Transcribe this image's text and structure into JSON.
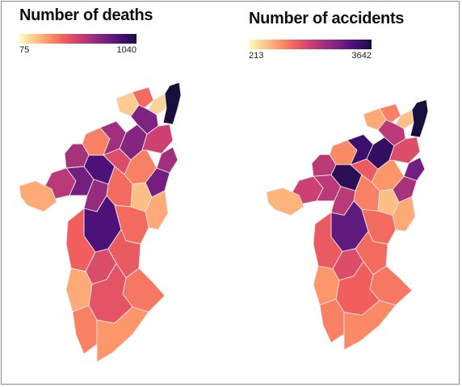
{
  "colors": {
    "scale": [
      "#fcfdbf",
      "#fec98d",
      "#fd9668",
      "#f1605d",
      "#cd4071",
      "#9e2f7f",
      "#721f81",
      "#440f76",
      "#180f3d"
    ],
    "border": "#f5e6e6"
  },
  "maps": [
    {
      "title": "Number of deaths",
      "legend": {
        "min": "75",
        "max": "1040"
      },
      "districts": [
        {
          "name": "d01",
          "value": 0.55
        },
        {
          "name": "d02",
          "value": 0.2
        },
        {
          "name": "d03",
          "value": 0.75
        },
        {
          "name": "d04",
          "value": 0.3
        },
        {
          "name": "d05",
          "value": 0.6
        },
        {
          "name": "d06",
          "value": 0.85
        },
        {
          "name": "d07",
          "value": 0.45
        },
        {
          "name": "d08",
          "value": 0.62
        },
        {
          "name": "d09",
          "value": 0.12
        },
        {
          "name": "d10",
          "value": 0.35
        },
        {
          "name": "d11",
          "value": 0.7
        },
        {
          "name": "d12",
          "value": 0.1
        },
        {
          "name": "d13",
          "value": 0.72
        },
        {
          "name": "d14",
          "value": 0.5
        },
        {
          "name": "d15",
          "value": 1.0
        },
        {
          "name": "d16",
          "value": 0.62
        },
        {
          "name": "d17",
          "value": 0.75
        },
        {
          "name": "d18",
          "value": 0.3
        },
        {
          "name": "d19",
          "value": 0.15
        },
        {
          "name": "d20",
          "value": 0.35
        },
        {
          "name": "d21",
          "value": 0.65
        },
        {
          "name": "d22",
          "value": 0.2
        },
        {
          "name": "d23",
          "value": 0.85
        },
        {
          "name": "d24",
          "value": 0.35
        },
        {
          "name": "d25",
          "value": 0.38
        },
        {
          "name": "d26",
          "value": 0.45
        },
        {
          "name": "d27",
          "value": 0.4
        },
        {
          "name": "d28",
          "value": 0.32
        },
        {
          "name": "d29",
          "value": 0.2
        },
        {
          "name": "d30",
          "value": 0.42
        },
        {
          "name": "d31",
          "value": 0.3
        },
        {
          "name": "d32",
          "value": 0.25
        }
      ]
    },
    {
      "title": "Number of accidents",
      "legend": {
        "min": "213",
        "max": "3642"
      },
      "districts": [
        {
          "name": "d01",
          "value": 0.5
        },
        {
          "name": "d02",
          "value": 0.18
        },
        {
          "name": "d03",
          "value": 0.55
        },
        {
          "name": "d04",
          "value": 0.28
        },
        {
          "name": "d05",
          "value": 0.55
        },
        {
          "name": "d06",
          "value": 0.95
        },
        {
          "name": "d07",
          "value": 0.4
        },
        {
          "name": "d08",
          "value": 0.9
        },
        {
          "name": "d09",
          "value": 0.2
        },
        {
          "name": "d10",
          "value": 0.3
        },
        {
          "name": "d11",
          "value": 0.92
        },
        {
          "name": "d12",
          "value": 0.15
        },
        {
          "name": "d13",
          "value": 0.55
        },
        {
          "name": "d14",
          "value": 0.45
        },
        {
          "name": "d15",
          "value": 1.0
        },
        {
          "name": "d16",
          "value": 0.75
        },
        {
          "name": "d17",
          "value": 0.6
        },
        {
          "name": "d18",
          "value": 0.25
        },
        {
          "name": "d19",
          "value": 0.15
        },
        {
          "name": "d20",
          "value": 0.3
        },
        {
          "name": "d21",
          "value": 0.55
        },
        {
          "name": "d22",
          "value": 0.2
        },
        {
          "name": "d23",
          "value": 0.8
        },
        {
          "name": "d24",
          "value": 0.35
        },
        {
          "name": "d25",
          "value": 0.4
        },
        {
          "name": "d26",
          "value": 0.45
        },
        {
          "name": "d27",
          "value": 0.35
        },
        {
          "name": "d28",
          "value": 0.32
        },
        {
          "name": "d29",
          "value": 0.25
        },
        {
          "name": "d30",
          "value": 0.38
        },
        {
          "name": "d31",
          "value": 0.3
        },
        {
          "name": "d32",
          "value": 0.28
        }
      ]
    }
  ]
}
